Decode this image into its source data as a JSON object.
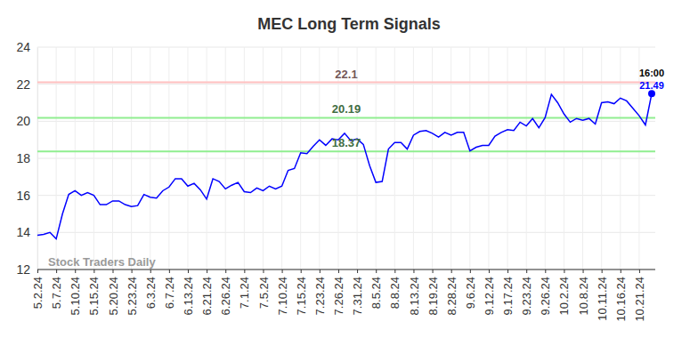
{
  "chart_data": {
    "type": "line",
    "title": "MEC Long Term Signals",
    "watermark": "Stock Traders Daily",
    "annotations": [
      "16:00"
    ],
    "color": "#0000ff",
    "grid": true,
    "ylim": [
      12,
      24
    ],
    "yticks": [
      12,
      14,
      16,
      18,
      20,
      22,
      24
    ],
    "reference_lines": [
      {
        "value": 22.1,
        "color": "#ffc0c0"
      },
      {
        "value": 20.19,
        "color": "#90ee90"
      },
      {
        "value": 18.37,
        "color": "#90ee90"
      }
    ],
    "categories": [
      "5.2.24",
      null,
      null,
      "5.7.24",
      null,
      null,
      "5.10.24",
      null,
      null,
      "5.15.24",
      null,
      null,
      "5.20.24",
      null,
      null,
      "5.23.24",
      null,
      null,
      "6.3.24",
      null,
      null,
      "6.7.24",
      null,
      null,
      "6.13.24",
      null,
      null,
      "6.21.24",
      null,
      null,
      "6.26.24",
      null,
      null,
      "7.1.24",
      null,
      null,
      "7.5.24",
      null,
      null,
      "7.10.24",
      null,
      null,
      "7.15.24",
      null,
      null,
      "7.23.24",
      null,
      null,
      "7.26.24",
      null,
      null,
      "7.31.24",
      null,
      null,
      "8.5.24",
      null,
      null,
      "8.8.24",
      null,
      null,
      "8.13.24",
      null,
      null,
      "8.19.24",
      null,
      null,
      "8.28.24",
      null,
      null,
      "9.6.24",
      null,
      null,
      "9.12.24",
      null,
      null,
      "9.17.24",
      null,
      null,
      "9.23.24",
      null,
      null,
      "9.26.24",
      null,
      null,
      "10.2.24",
      null,
      null,
      "10.8.24",
      null,
      null,
      "10.11.24",
      null,
      null,
      "10.16.24",
      null,
      null,
      "10.21.24",
      null,
      null
    ],
    "values": [
      13.85,
      13.9,
      14.0,
      13.65,
      15.0,
      16.05,
      16.25,
      16.0,
      16.15,
      16.0,
      15.5,
      15.5,
      15.7,
      15.7,
      15.5,
      15.4,
      15.45,
      16.05,
      15.9,
      15.85,
      16.25,
      16.45,
      16.9,
      16.9,
      16.5,
      16.65,
      16.3,
      15.8,
      16.9,
      16.75,
      16.35,
      16.55,
      16.7,
      16.2,
      16.15,
      16.4,
      16.25,
      16.5,
      16.35,
      16.5,
      17.35,
      17.45,
      18.3,
      18.25,
      18.65,
      19.0,
      18.7,
      19.05,
      19.0,
      19.35,
      18.95,
      19.05,
      18.75,
      17.6,
      16.7,
      16.75,
      18.5,
      18.85,
      18.85,
      18.5,
      19.25,
      19.45,
      19.5,
      19.35,
      19.15,
      19.4,
      19.25,
      19.4,
      19.4,
      18.4,
      18.6,
      18.7,
      18.7,
      19.2,
      19.4,
      19.55,
      19.5,
      19.95,
      19.75,
      20.15,
      19.65,
      20.2,
      21.45,
      21.0,
      20.4,
      19.95,
      20.15,
      20.05,
      20.15,
      19.85,
      21.0,
      21.05,
      20.95,
      21.25,
      21.1,
      20.7,
      20.3,
      19.8,
      21.49
    ]
  }
}
